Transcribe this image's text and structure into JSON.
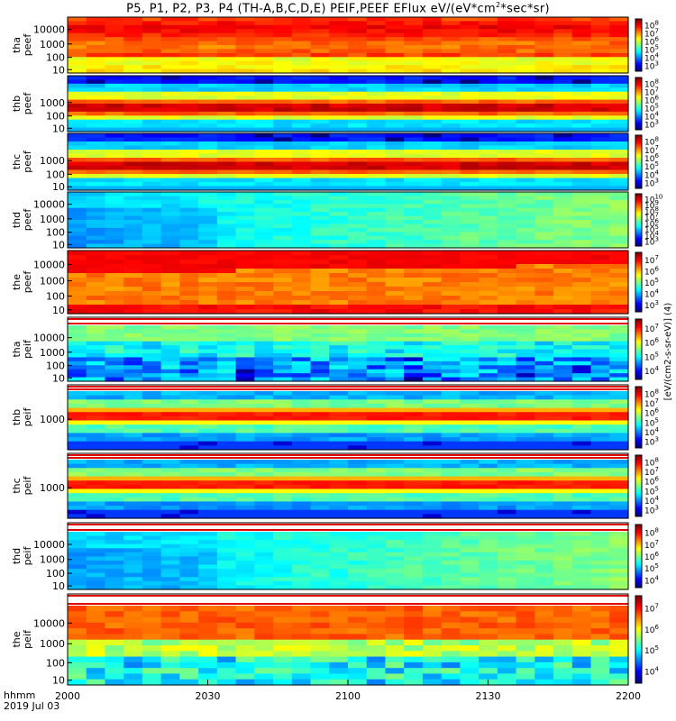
{
  "title": {
    "prefix": "P5, P1, P2, P3, P4 (TH-A,B,C,D,E) PEIF,PEEF EFlux eV/(eV*cm",
    "exp": "2",
    "suffix": "*sec*sr)"
  },
  "time_axis": {
    "ticks": [
      "2000",
      "2030",
      "2100",
      "2130",
      "2200"
    ],
    "label_line1": "hhmm",
    "label_line2": "2019 Jul 03"
  },
  "colorbar_side_label": "[eV/(cm2-s-sr-eV)] (4)",
  "chart_data": {
    "type": "heatmap",
    "x_range": [
      "2000",
      "2200"
    ],
    "yscale": "log",
    "panels": [
      {
        "probe": "tha",
        "species": "peef",
        "label": [
          "tha",
          "peef"
        ],
        "y_ticks": [
          "10",
          "100",
          "1000",
          "10000"
        ],
        "cb_ticks": [
          {
            "b": "10",
            "e": "3"
          },
          {
            "b": "10",
            "e": "4"
          },
          {
            "b": "10",
            "e": "5"
          },
          {
            "b": "10",
            "e": "6"
          },
          {
            "b": "10",
            "e": "7"
          },
          {
            "b": "10",
            "e": "8"
          }
        ],
        "appearance": "hot"
      },
      {
        "probe": "thb",
        "species": "peef",
        "label": [
          "thb",
          "peef"
        ],
        "y_ticks": [
          "10",
          "100",
          "1000"
        ],
        "cb_ticks": [
          {
            "b": "10",
            "e": "3"
          },
          {
            "b": "10",
            "e": "4"
          },
          {
            "b": "10",
            "e": "5"
          },
          {
            "b": "10",
            "e": "6"
          },
          {
            "b": "10",
            "e": "7"
          },
          {
            "b": "10",
            "e": "8"
          }
        ],
        "appearance": "banded"
      },
      {
        "probe": "thc",
        "species": "peef",
        "label": [
          "thc",
          "peef"
        ],
        "y_ticks": [
          "10",
          "100",
          "1000"
        ],
        "cb_ticks": [
          {
            "b": "10",
            "e": "3"
          },
          {
            "b": "10",
            "e": "4"
          },
          {
            "b": "10",
            "e": "5"
          },
          {
            "b": "10",
            "e": "6"
          },
          {
            "b": "10",
            "e": "7"
          },
          {
            "b": "10",
            "e": "8"
          }
        ],
        "appearance": "banded"
      },
      {
        "probe": "thd",
        "species": "peef",
        "label": [
          "thd",
          "peef"
        ],
        "y_ticks": [
          "10",
          "100",
          "1000",
          "10000"
        ],
        "cb_ticks": [
          {
            "b": "10",
            "e": "3"
          },
          {
            "b": "10",
            "e": "4"
          },
          {
            "b": "10",
            "e": "5"
          },
          {
            "b": "10",
            "e": "6"
          },
          {
            "b": "10",
            "e": "7"
          },
          {
            "b": "10",
            "e": "8"
          },
          {
            "b": "10",
            "e": "9"
          },
          {
            "b": "10",
            "e": "10"
          }
        ],
        "appearance": "cool"
      },
      {
        "probe": "the",
        "species": "peef",
        "label": [
          "the",
          "peef"
        ],
        "y_ticks": [
          "10",
          "100",
          "1000",
          "10000"
        ],
        "cb_ticks": [
          {
            "b": "10",
            "e": "3"
          },
          {
            "b": "10",
            "e": "4"
          },
          {
            "b": "10",
            "e": "5"
          },
          {
            "b": "10",
            "e": "6"
          },
          {
            "b": "10",
            "e": "7"
          }
        ],
        "appearance": "hot_upper"
      },
      {
        "probe": "tha",
        "species": "peif",
        "label": [
          "tha",
          "peif"
        ],
        "y_ticks": [
          "10",
          "100",
          "1000",
          "10000"
        ],
        "cb_ticks": [
          {
            "b": "10",
            "e": "4"
          },
          {
            "b": "10",
            "e": "5"
          },
          {
            "b": "10",
            "e": "6"
          },
          {
            "b": "10",
            "e": "7"
          }
        ],
        "appearance": "noisy"
      },
      {
        "probe": "thb",
        "species": "peif",
        "label": [
          "thb",
          "peif"
        ],
        "y_ticks": [
          "1000"
        ],
        "cb_ticks": [
          {
            "b": "10",
            "e": "3"
          },
          {
            "b": "10",
            "e": "4"
          },
          {
            "b": "10",
            "e": "5"
          },
          {
            "b": "10",
            "e": "6"
          },
          {
            "b": "10",
            "e": "7"
          },
          {
            "b": "10",
            "e": "8"
          }
        ],
        "appearance": "ionband"
      },
      {
        "probe": "thc",
        "species": "peif",
        "label": [
          "thc",
          "peif"
        ],
        "y_ticks": [
          "1000"
        ],
        "cb_ticks": [
          {
            "b": "10",
            "e": "3"
          },
          {
            "b": "10",
            "e": "4"
          },
          {
            "b": "10",
            "e": "5"
          },
          {
            "b": "10",
            "e": "6"
          },
          {
            "b": "10",
            "e": "7"
          },
          {
            "b": "10",
            "e": "8"
          }
        ],
        "appearance": "ionband"
      },
      {
        "probe": "thd",
        "species": "peif",
        "label": [
          "thd",
          "peif"
        ],
        "y_ticks": [
          "10",
          "100",
          "1000",
          "10000"
        ],
        "cb_ticks": [
          {
            "b": "10",
            "e": "4"
          },
          {
            "b": "10",
            "e": "5"
          },
          {
            "b": "10",
            "e": "6"
          },
          {
            "b": "10",
            "e": "7"
          },
          {
            "b": "10",
            "e": "8"
          }
        ],
        "appearance": "cool"
      },
      {
        "probe": "the",
        "species": "peif",
        "label": [
          "the",
          "peif"
        ],
        "y_ticks": [
          "10",
          "100",
          "1000",
          "10000"
        ],
        "cb_ticks": [
          {
            "b": "10",
            "e": "4"
          },
          {
            "b": "10",
            "e": "5"
          },
          {
            "b": "10",
            "e": "6"
          },
          {
            "b": "10",
            "e": "7"
          }
        ],
        "appearance": "noisy_upper"
      }
    ]
  }
}
